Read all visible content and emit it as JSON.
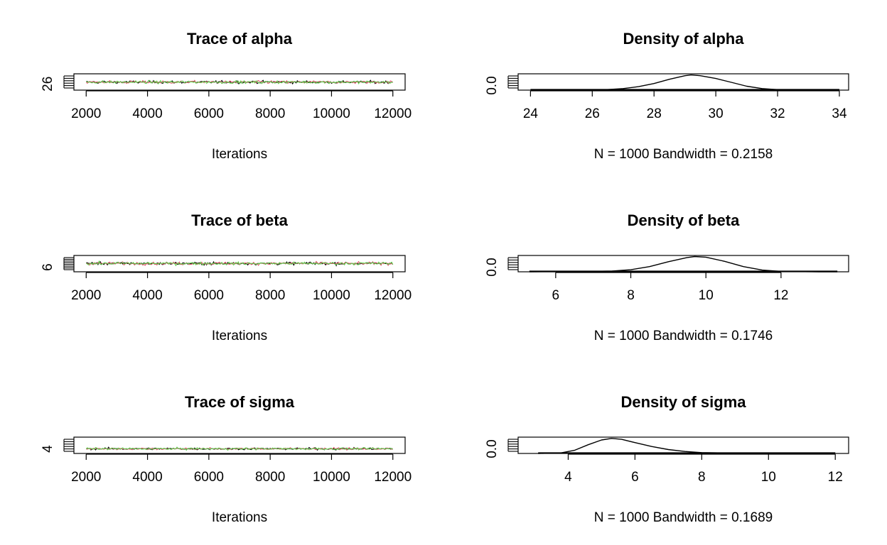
{
  "colors": {
    "chain1": "#000000",
    "chain2": "#DF536B",
    "chain3": "#61D04F",
    "axis": "#000000"
  },
  "chart_data": [
    {
      "type": "line",
      "panel": "trace",
      "parameter": "alpha",
      "title": "Trace of alpha",
      "xlabel": "Iterations",
      "x_ticks": [
        "2000",
        "4000",
        "6000",
        "8000",
        "10000",
        "12000"
      ],
      "y_ticks": [
        "26"
      ],
      "xlim": [
        1600,
        12400
      ],
      "ylim": [
        24,
        34.6
      ],
      "y_center": 29.2,
      "y_spread": 1.1,
      "chains": 3,
      "iterations": [
        2000,
        12000
      ]
    },
    {
      "type": "line",
      "panel": "density",
      "parameter": "alpha",
      "title": "Density of alpha",
      "xlabel": "N = 1000   Bandwidth = 0.2158",
      "x_ticks": [
        "24",
        "26",
        "28",
        "30",
        "32",
        "34"
      ],
      "y_ticks": [
        "0.0"
      ],
      "xlim": [
        23.6,
        34.3
      ],
      "ylim": [
        0,
        0.42
      ],
      "x": [
        24.0,
        25.5,
        26.5,
        27.0,
        27.5,
        28.0,
        28.5,
        29.0,
        29.2,
        29.5,
        30.0,
        30.5,
        31.0,
        31.5,
        32.0,
        33.0,
        34.0
      ],
      "y": [
        0.0,
        0.002,
        0.015,
        0.04,
        0.09,
        0.17,
        0.28,
        0.37,
        0.39,
        0.37,
        0.3,
        0.2,
        0.1,
        0.04,
        0.012,
        0.002,
        0.0
      ]
    },
    {
      "type": "line",
      "panel": "trace",
      "parameter": "beta",
      "title": "Trace of beta",
      "xlabel": "Iterations",
      "x_ticks": [
        "2000",
        "4000",
        "6000",
        "8000",
        "10000",
        "12000"
      ],
      "y_ticks": [
        "6"
      ],
      "xlim": [
        1600,
        12400
      ],
      "ylim": [
        5.2,
        14.0
      ],
      "y_center": 9.7,
      "y_spread": 0.95,
      "chains": 3,
      "iterations": [
        2000,
        12000
      ]
    },
    {
      "type": "line",
      "panel": "density",
      "parameter": "beta",
      "title": "Density of beta",
      "xlabel": "N = 1000   Bandwidth = 0.1746",
      "x_ticks": [
        "6",
        "8",
        "10",
        "12"
      ],
      "y_ticks": [
        "0.0"
      ],
      "xlim": [
        5.0,
        13.8
      ],
      "ylim": [
        0,
        0.47
      ],
      "x": [
        5.3,
        6.5,
        7.5,
        8.0,
        8.5,
        9.0,
        9.5,
        9.7,
        10.0,
        10.5,
        11.0,
        11.5,
        12.0,
        13.0,
        13.5
      ],
      "y": [
        0.0,
        0.003,
        0.02,
        0.06,
        0.15,
        0.29,
        0.41,
        0.44,
        0.42,
        0.3,
        0.15,
        0.05,
        0.012,
        0.001,
        0.0
      ]
    },
    {
      "type": "line",
      "panel": "trace",
      "parameter": "sigma",
      "title": "Trace of sigma",
      "xlabel": "Iterations",
      "x_ticks": [
        "2000",
        "4000",
        "6000",
        "8000",
        "10000",
        "12000"
      ],
      "y_ticks": [
        "4"
      ],
      "xlim": [
        1600,
        12400
      ],
      "ylim": [
        2.8,
        12.2
      ],
      "y_center": 5.5,
      "y_spread": 0.75,
      "chains": 3,
      "iterations": [
        2000,
        12000
      ]
    },
    {
      "type": "line",
      "panel": "density",
      "parameter": "sigma",
      "title": "Density of sigma",
      "xlabel": "N = 1000   Bandwidth = 0.1689",
      "x_ticks": [
        "4",
        "6",
        "8",
        "10",
        "12"
      ],
      "y_ticks": [
        "0.0"
      ],
      "xlim": [
        2.5,
        12.4
      ],
      "ylim": [
        0,
        0.75
      ],
      "x": [
        3.1,
        3.8,
        4.2,
        4.6,
        5.0,
        5.3,
        5.6,
        6.0,
        6.5,
        7.0,
        7.5,
        8.0,
        9.0,
        10.0,
        12.0
      ],
      "y": [
        0.0,
        0.03,
        0.15,
        0.4,
        0.62,
        0.69,
        0.65,
        0.5,
        0.32,
        0.18,
        0.09,
        0.04,
        0.01,
        0.003,
        0.0
      ]
    }
  ]
}
